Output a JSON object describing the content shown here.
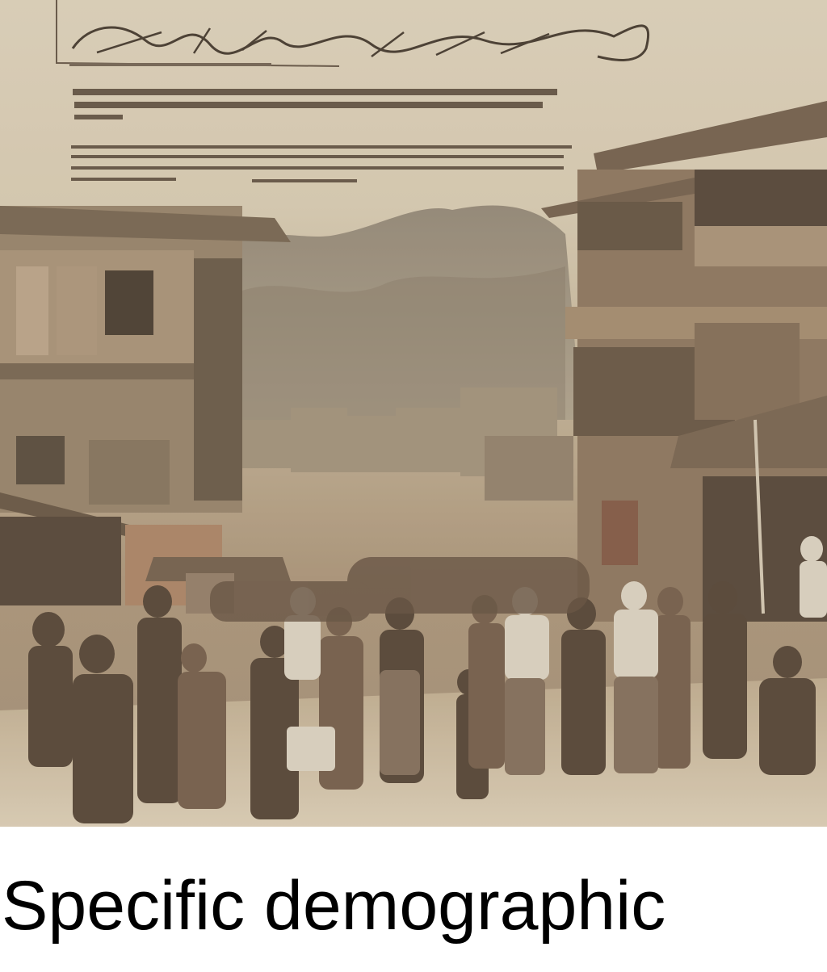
{
  "caption": "Specific demographic",
  "palette": {
    "paper": "#d8ccb6",
    "sepia_dark": "#4a3a2c",
    "sepia_mid": "#8c735a",
    "mountain": "#8f8270"
  }
}
